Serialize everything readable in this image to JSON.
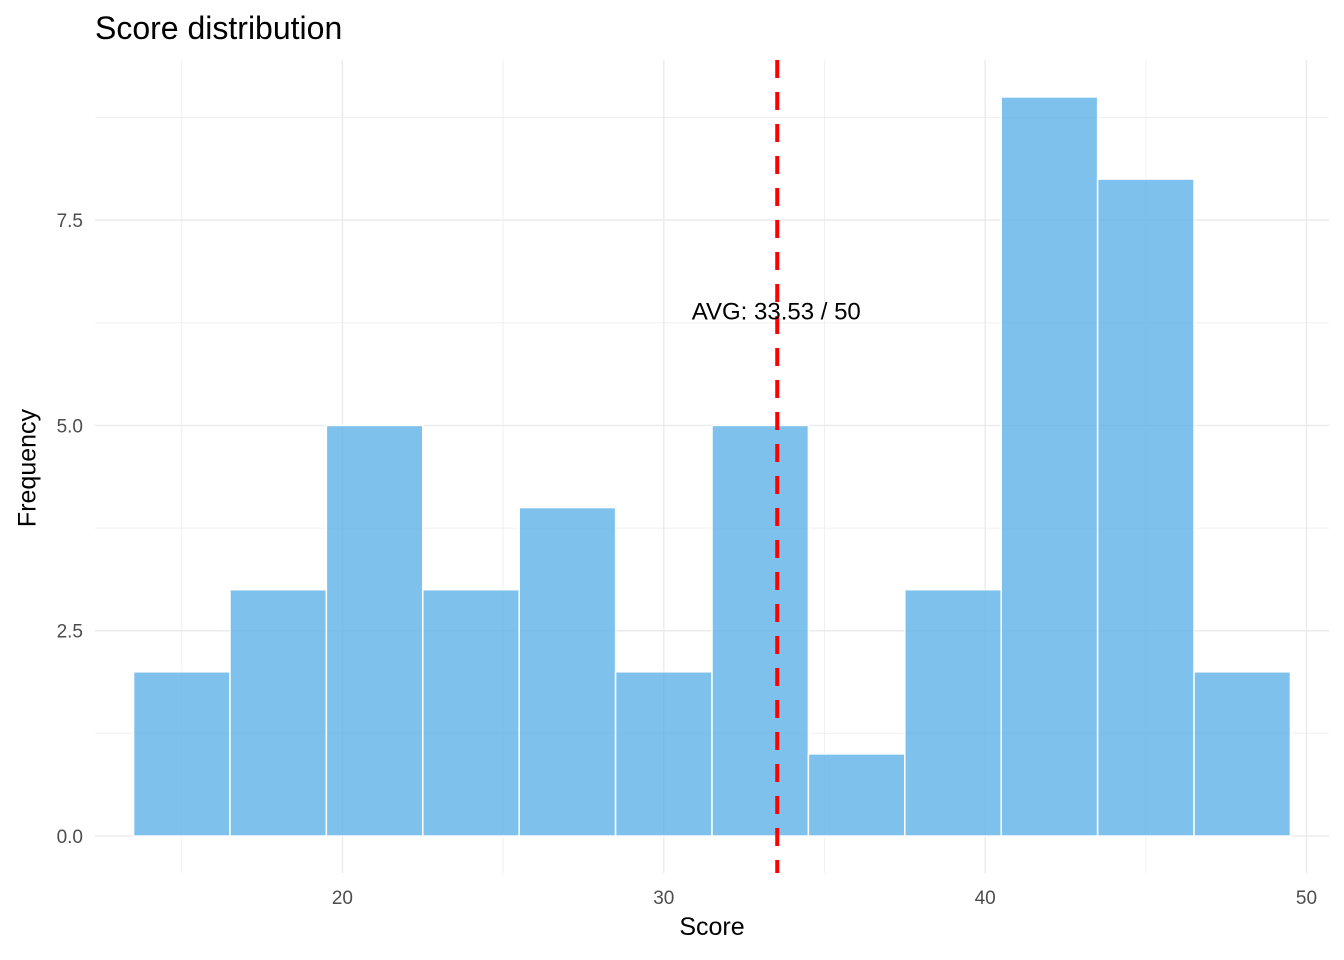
{
  "chart_data": {
    "type": "bar",
    "title": "Score distribution",
    "xlabel": "Score",
    "ylabel": "Frequency",
    "bins": [
      {
        "start": 13.5,
        "end": 16.5,
        "count": 2
      },
      {
        "start": 16.5,
        "end": 19.5,
        "count": 3
      },
      {
        "start": 19.5,
        "end": 22.5,
        "count": 5
      },
      {
        "start": 22.5,
        "end": 25.5,
        "count": 3
      },
      {
        "start": 25.5,
        "end": 28.5,
        "count": 4
      },
      {
        "start": 28.5,
        "end": 31.5,
        "count": 2
      },
      {
        "start": 31.5,
        "end": 34.5,
        "count": 5
      },
      {
        "start": 34.5,
        "end": 37.5,
        "count": 1
      },
      {
        "start": 37.5,
        "end": 40.5,
        "count": 3
      },
      {
        "start": 40.5,
        "end": 43.5,
        "count": 9
      },
      {
        "start": 43.5,
        "end": 46.5,
        "count": 8
      },
      {
        "start": 46.5,
        "end": 49.5,
        "count": 2
      }
    ],
    "xlim": [
      12.3,
      50.7
    ],
    "ylim": [
      -0.45,
      9.45
    ],
    "x_ticks": [
      20,
      30,
      40,
      50
    ],
    "x_tick_labels": [
      "20",
      "30",
      "40",
      "50"
    ],
    "y_ticks": [
      0,
      2.5,
      5,
      7.5
    ],
    "y_tick_labels": [
      "0.0",
      "2.5",
      "5.0",
      "7.5"
    ],
    "grid": true,
    "bar_color": "#5DB2E7",
    "mean_line": {
      "x": 33.53,
      "color": "#FF0000",
      "style": "dashed"
    },
    "annotation": {
      "text": "AVG: 33.53 / 50",
      "x": 33.5,
      "y": 6.4
    }
  }
}
